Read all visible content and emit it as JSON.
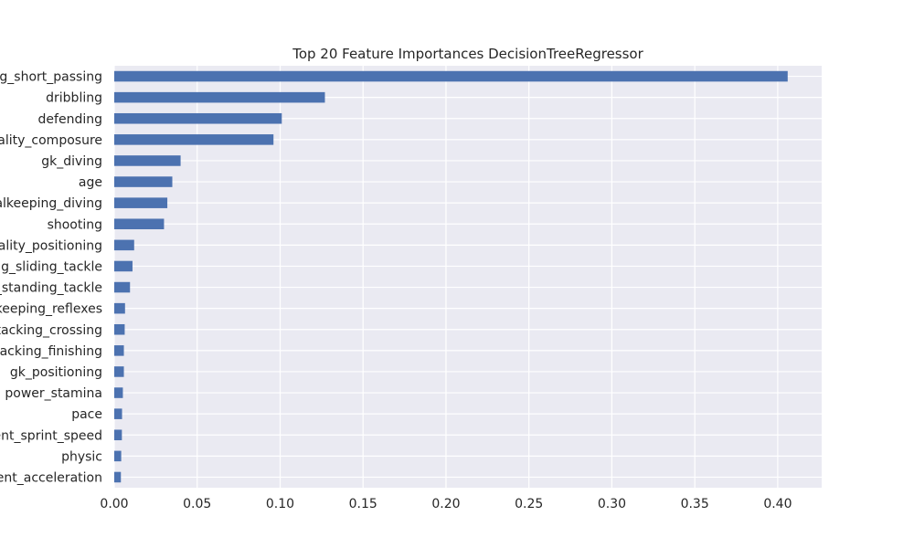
{
  "chart_data": {
    "type": "bar",
    "orientation": "horizontal",
    "title": "Top 20 Feature Importances DecisionTreeRegressor",
    "xlabel": "",
    "ylabel": "",
    "xlim": [
      0,
      0.4265
    ],
    "grid": true,
    "colors": {
      "bar": "#4c72b0",
      "plot_background": "#eaeaf2",
      "grid": "#ffffff",
      "text": "#262626"
    },
    "x_ticks": [
      "0.00",
      "0.05",
      "0.10",
      "0.15",
      "0.20",
      "0.25",
      "0.30",
      "0.35",
      "0.40"
    ],
    "x_tick_values": [
      0,
      0.05,
      0.1,
      0.15,
      0.2,
      0.25,
      0.3,
      0.35,
      0.4
    ],
    "categories": [
      "g_short_passing",
      "dribbling",
      "defending",
      "tality_composure",
      "gk_diving",
      "age",
      "alkeeping_diving",
      "shooting",
      "tality_positioning",
      "ng_sliding_tackle",
      "_standing_tackle",
      "keeping_reflexes",
      "tacking_crossing",
      "tacking_finishing",
      "gk_positioning",
      "power_stamina",
      "pace",
      "ent_sprint_speed",
      "physic",
      "ent_acceleration"
    ],
    "values": [
      0.406,
      0.127,
      0.101,
      0.096,
      0.04,
      0.035,
      0.032,
      0.03,
      0.012,
      0.011,
      0.0095,
      0.0065,
      0.0063,
      0.0058,
      0.0058,
      0.0052,
      0.0047,
      0.0046,
      0.0042,
      0.004
    ]
  }
}
